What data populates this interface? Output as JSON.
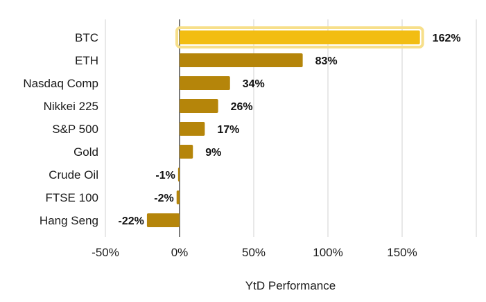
{
  "chart_data": {
    "type": "bar",
    "orientation": "horizontal",
    "categories": [
      "BTC",
      "ETH",
      "Nasdaq Comp",
      "Nikkei 225",
      "S&P 500",
      "Gold",
      "Crude Oil",
      "FTSE 100",
      "Hang Seng"
    ],
    "values": [
      162,
      83,
      34,
      26,
      17,
      9,
      -1,
      -2,
      -22
    ],
    "value_labels": [
      "162%",
      "83%",
      "34%",
      "26%",
      "17%",
      "9%",
      "-1%",
      "-2%",
      "-22%"
    ],
    "highlight": "BTC",
    "xlabel": "YtD Performance",
    "ylabel": "",
    "title": "",
    "xlim": [
      -50,
      200
    ],
    "xticks": [
      -50,
      0,
      50,
      100,
      150,
      200
    ],
    "xtick_labels": [
      "-50%",
      "0%",
      "50%",
      "100%",
      "150%",
      ""
    ],
    "grid": true,
    "colors": {
      "bar": "#b5850a",
      "highlight": "#f2bd12",
      "highlight_glow": "#f7df8a"
    }
  }
}
